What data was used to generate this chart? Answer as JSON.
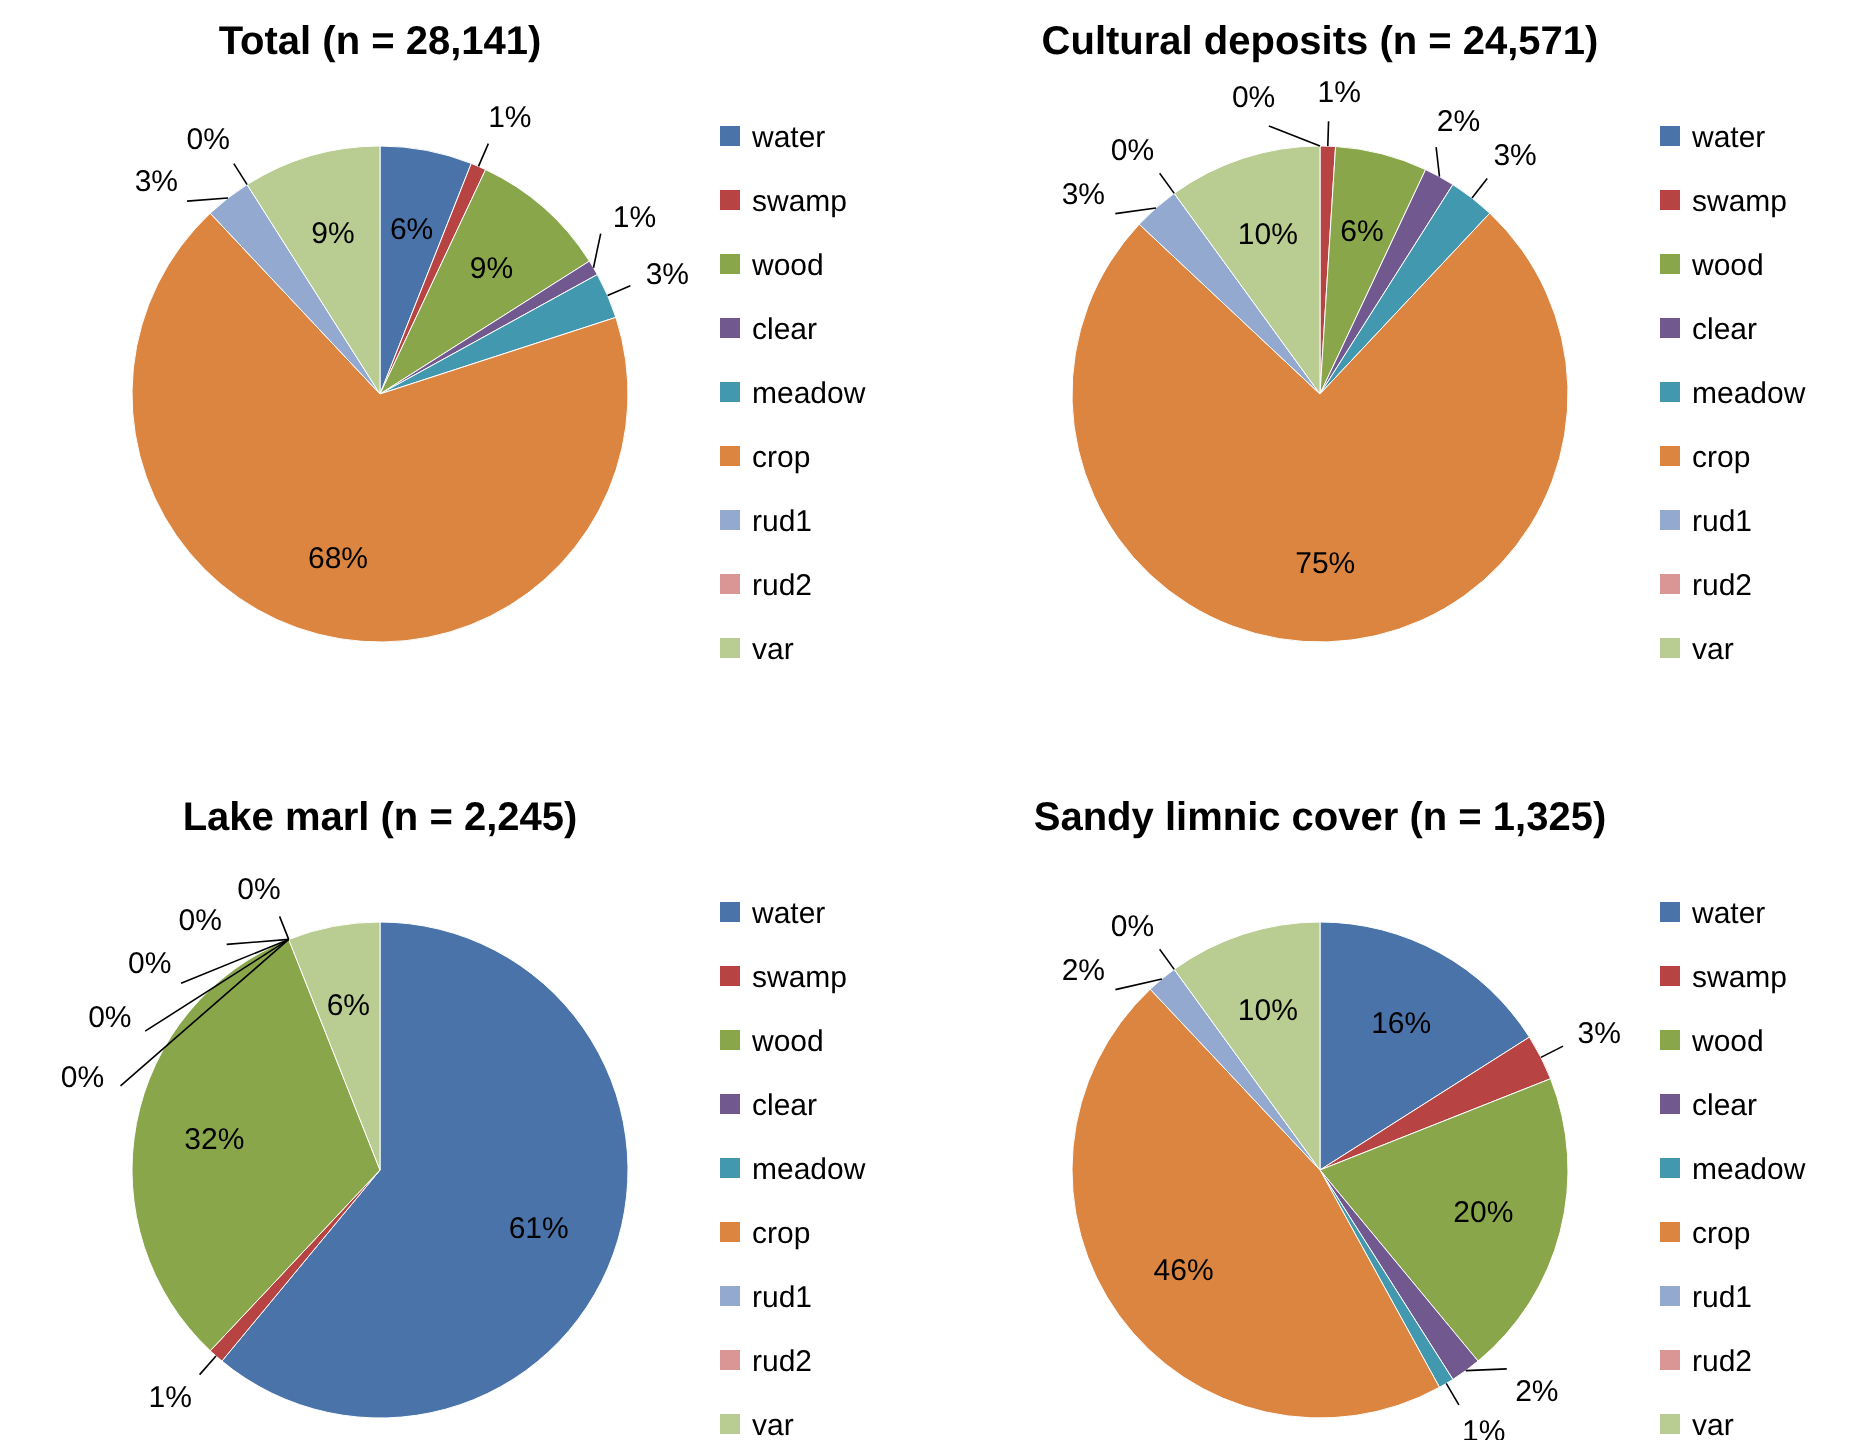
{
  "chart_data": [
    {
      "type": "pie",
      "title": "Total (n = 28,141)",
      "categories": [
        "water",
        "swamp",
        "wood",
        "clear",
        "meadow",
        "crop",
        "rud1",
        "rud2",
        "var"
      ],
      "values": [
        6,
        1,
        9,
        1,
        3,
        68,
        3,
        0,
        9
      ],
      "value_labels": [
        "6%",
        "1%",
        "9%",
        "1%",
        "3%",
        "68%",
        "3%",
        "0%",
        "9%"
      ],
      "colors": [
        "#4a73aa",
        "#b74442",
        "#8aa64b",
        "#71588f",
        "#4298ae",
        "#db8540",
        "#94a9cf",
        "#d99694",
        "#b9cc92"
      ],
      "legend": "right"
    },
    {
      "type": "pie",
      "title": "Cultural deposits (n = 24,571)",
      "categories": [
        "water",
        "swamp",
        "wood",
        "clear",
        "meadow",
        "crop",
        "rud1",
        "rud2",
        "var"
      ],
      "values": [
        0,
        1,
        6,
        2,
        3,
        75,
        3,
        0,
        10
      ],
      "value_labels": [
        "0%",
        "1%",
        "6%",
        "2%",
        "3%",
        "75%",
        "3%",
        "0%",
        "10%"
      ],
      "colors": [
        "#4a73aa",
        "#b74442",
        "#8aa64b",
        "#71588f",
        "#4298ae",
        "#db8540",
        "#94a9cf",
        "#d99694",
        "#b9cc92"
      ],
      "legend": "right"
    },
    {
      "type": "pie",
      "title": "Lake marl (n = 2,245)",
      "categories": [
        "water",
        "swamp",
        "wood",
        "clear",
        "meadow",
        "crop",
        "rud1",
        "rud2",
        "var"
      ],
      "values": [
        61,
        1,
        32,
        0,
        0,
        0,
        0,
        0,
        6
      ],
      "value_labels": [
        "61%",
        "1%",
        "32%",
        "0%",
        "0%",
        "0%",
        "0%",
        "0%",
        "6%"
      ],
      "colors": [
        "#4a73aa",
        "#b74442",
        "#8aa64b",
        "#71588f",
        "#4298ae",
        "#db8540",
        "#94a9cf",
        "#d99694",
        "#b9cc92"
      ],
      "legend": "right"
    },
    {
      "type": "pie",
      "title": "Sandy limnic cover (n = 1,325)",
      "categories": [
        "water",
        "swamp",
        "wood",
        "clear",
        "meadow",
        "crop",
        "rud1",
        "rud2",
        "var"
      ],
      "values": [
        16,
        3,
        20,
        2,
        1,
        46,
        2,
        0,
        10
      ],
      "value_labels": [
        "16%",
        "3%",
        "20%",
        "2%",
        "1%",
        "46%",
        "2%",
        "0%",
        "10%"
      ],
      "colors": [
        "#4a73aa",
        "#b74442",
        "#8aa64b",
        "#71588f",
        "#4298ae",
        "#db8540",
        "#94a9cf",
        "#d99694",
        "#b9cc92"
      ],
      "legend": "right"
    }
  ]
}
